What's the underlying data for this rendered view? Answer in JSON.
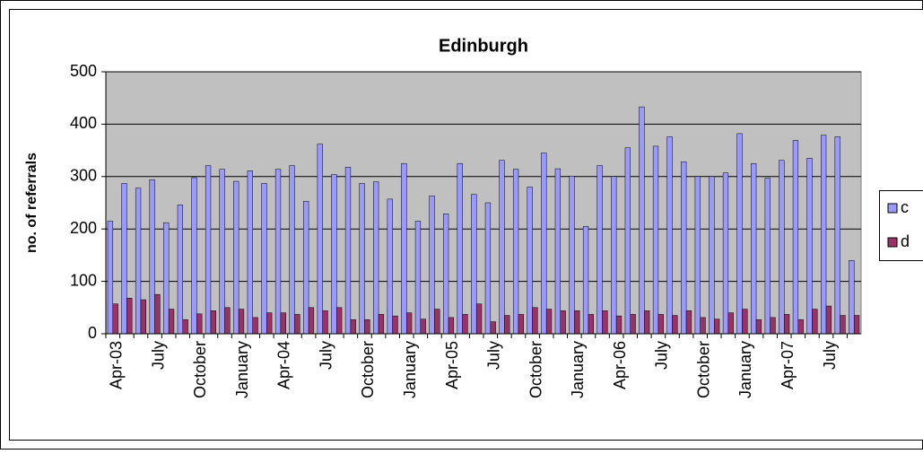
{
  "chart_data": {
    "type": "bar",
    "title": "Edinburgh",
    "y_label": "no. of referrals",
    "categories": [
      "Apr-03",
      null,
      null,
      "July",
      null,
      null,
      "October",
      null,
      null,
      "January",
      null,
      null,
      "Apr-04",
      null,
      null,
      "July",
      null,
      null,
      "October",
      null,
      null,
      "January",
      null,
      null,
      "Apr-05",
      null,
      null,
      "July",
      null,
      null,
      "October",
      null,
      null,
      "January",
      null,
      null,
      "Apr-06",
      null,
      null,
      "July",
      null,
      null,
      "October",
      null,
      null,
      "January",
      null,
      null,
      "Apr-07",
      null,
      null,
      "July",
      null,
      null
    ],
    "series": [
      {
        "name": "c",
        "color": "#9999ff",
        "values": [
          215,
          287,
          278,
          294,
          212,
          246,
          298,
          321,
          314,
          291,
          311,
          287,
          314,
          321,
          253,
          362,
          304,
          318,
          287,
          290,
          257,
          325,
          215,
          263,
          229,
          325,
          266,
          250,
          331,
          314,
          280,
          345,
          315,
          301,
          205,
          321,
          300,
          355,
          433,
          358,
          376,
          328,
          300,
          300,
          307,
          382,
          325,
          297,
          331,
          369,
          335,
          379,
          376,
          140
        ]
      },
      {
        "name": "d",
        "color": "#993366",
        "values": [
          57,
          68,
          65,
          75,
          47,
          27,
          38,
          44,
          50,
          47,
          31,
          40,
          40,
          37,
          50,
          44,
          50,
          27,
          27,
          37,
          34,
          40,
          28,
          47,
          31,
          37,
          57,
          23,
          35,
          37,
          50,
          47,
          44,
          44,
          37,
          44,
          34,
          37,
          44,
          37,
          35,
          44,
          31,
          28,
          40,
          47,
          27,
          31,
          37,
          27,
          47,
          53,
          35,
          35
        ]
      }
    ],
    "ylim": [
      0,
      500
    ],
    "yticks": [
      0,
      100,
      200,
      300,
      400,
      500
    ],
    "grid": true,
    "legend": "right",
    "plot_background": "#c0c0c0"
  }
}
